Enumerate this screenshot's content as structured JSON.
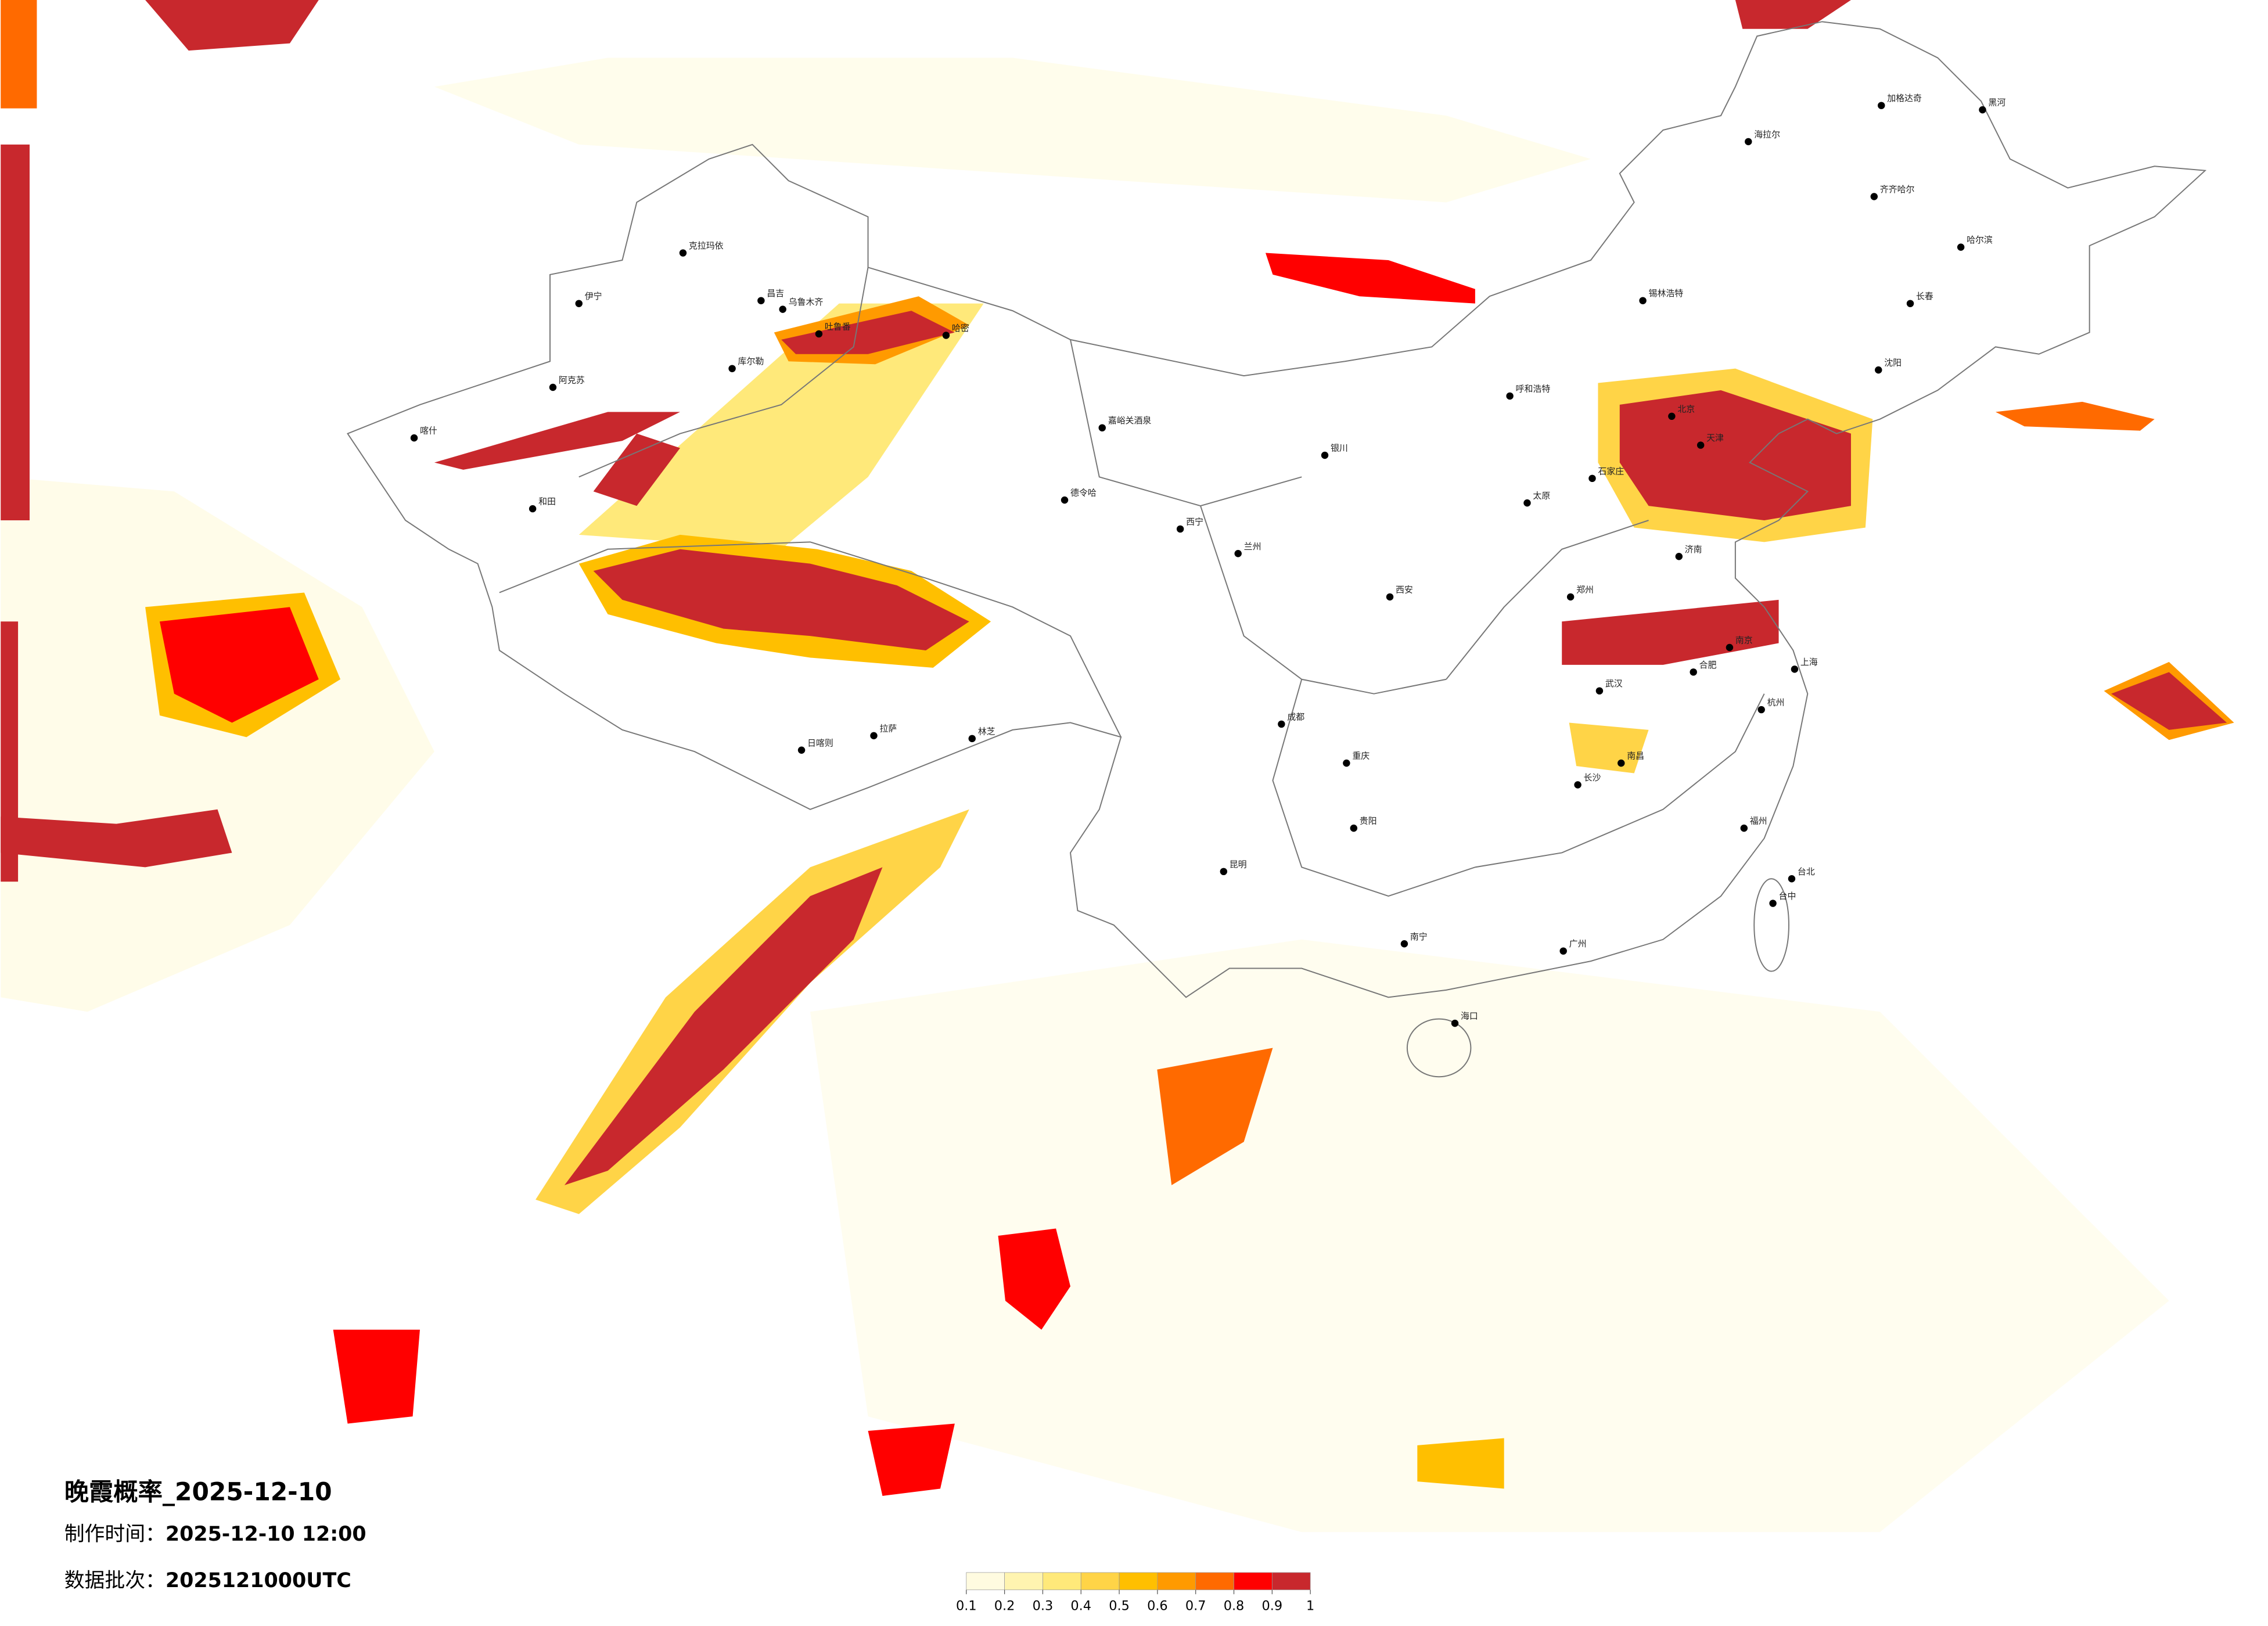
{
  "title": "晚霞概率_2025-12-10",
  "made_label": "制作时间：",
  "made_time": "2025-12-10 12:00",
  "batch_label": "数据批次：",
  "batch": "2025121000UTC",
  "colorbar": {
    "ticks": [
      0.1,
      0.2,
      0.3,
      0.4,
      0.5,
      0.6,
      0.7,
      0.8,
      0.9,
      1
    ],
    "colors": [
      "#fffbe0",
      "#fff4b0",
      "#ffe97a",
      "#ffd447",
      "#ffbf00",
      "#ff9a00",
      "#ff6a00",
      "#ff0000",
      "#c8282d"
    ]
  },
  "cities": [
    "克拉玛依",
    "昌吉",
    "乌鲁木齐",
    "伊宁",
    "阿克苏",
    "喀什",
    "和田",
    "哈密",
    "吐鲁番",
    "库尔勒",
    "日喀则",
    "拉萨",
    "林芝",
    "嘉峪关酒泉",
    "德令哈",
    "西宁",
    "兰州",
    "银川",
    "呼和浩特",
    "北京",
    "天津",
    "石家庄",
    "太原",
    "济南",
    "郑州",
    "西安",
    "成都",
    "重庆",
    "贵阳",
    "昆明",
    "南宁",
    "广州",
    "长沙",
    "武汉",
    "南昌",
    "合肥",
    "南京",
    "上海",
    "杭州",
    "福州",
    "台北",
    "台中",
    "海口",
    "哈尔滨",
    "长春",
    "沈阳",
    "齐齐哈尔",
    "海拉尔",
    "加格达奇",
    "黑河",
    "锡林浩特"
  ]
}
